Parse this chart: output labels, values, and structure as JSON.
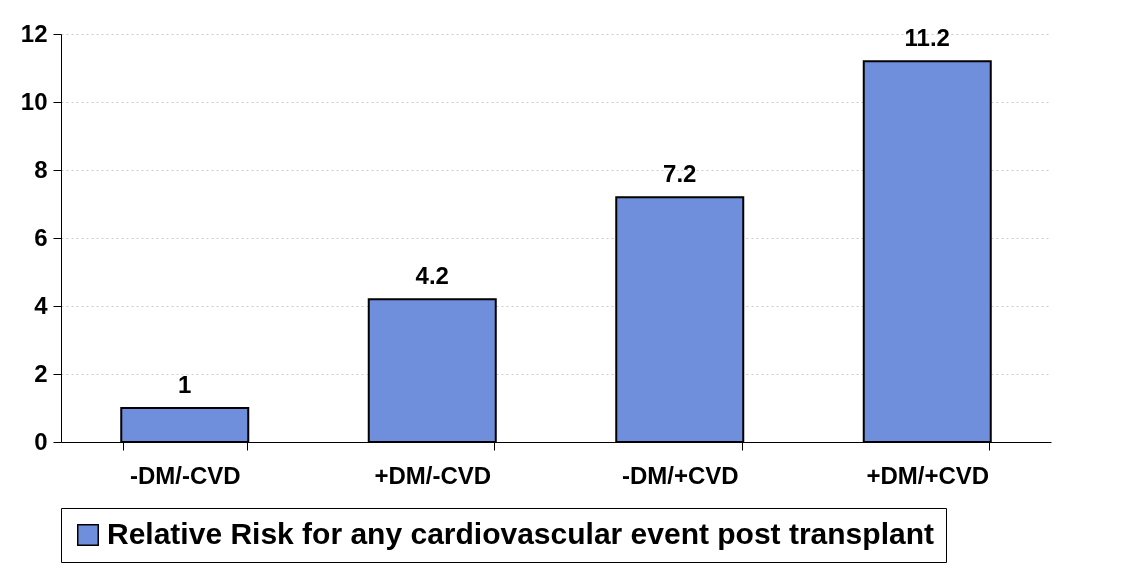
{
  "chart_data": {
    "type": "bar",
    "categories": [
      "-DM/-CVD",
      "+DM/-CVD",
      "-DM/+CVD",
      "+DM/+CVD"
    ],
    "series": [
      {
        "name": "Relative Risk for any cardiovascular event post transplant",
        "color": "#6f8fdc",
        "values": [
          1,
          4.2,
          7.2,
          11.2
        ]
      }
    ],
    "ylim": [
      0,
      12
    ],
    "yticks": [
      0,
      2,
      4,
      6,
      8,
      10,
      12
    ],
    "grid": "y",
    "legend": "bottom",
    "data_labels": true
  }
}
